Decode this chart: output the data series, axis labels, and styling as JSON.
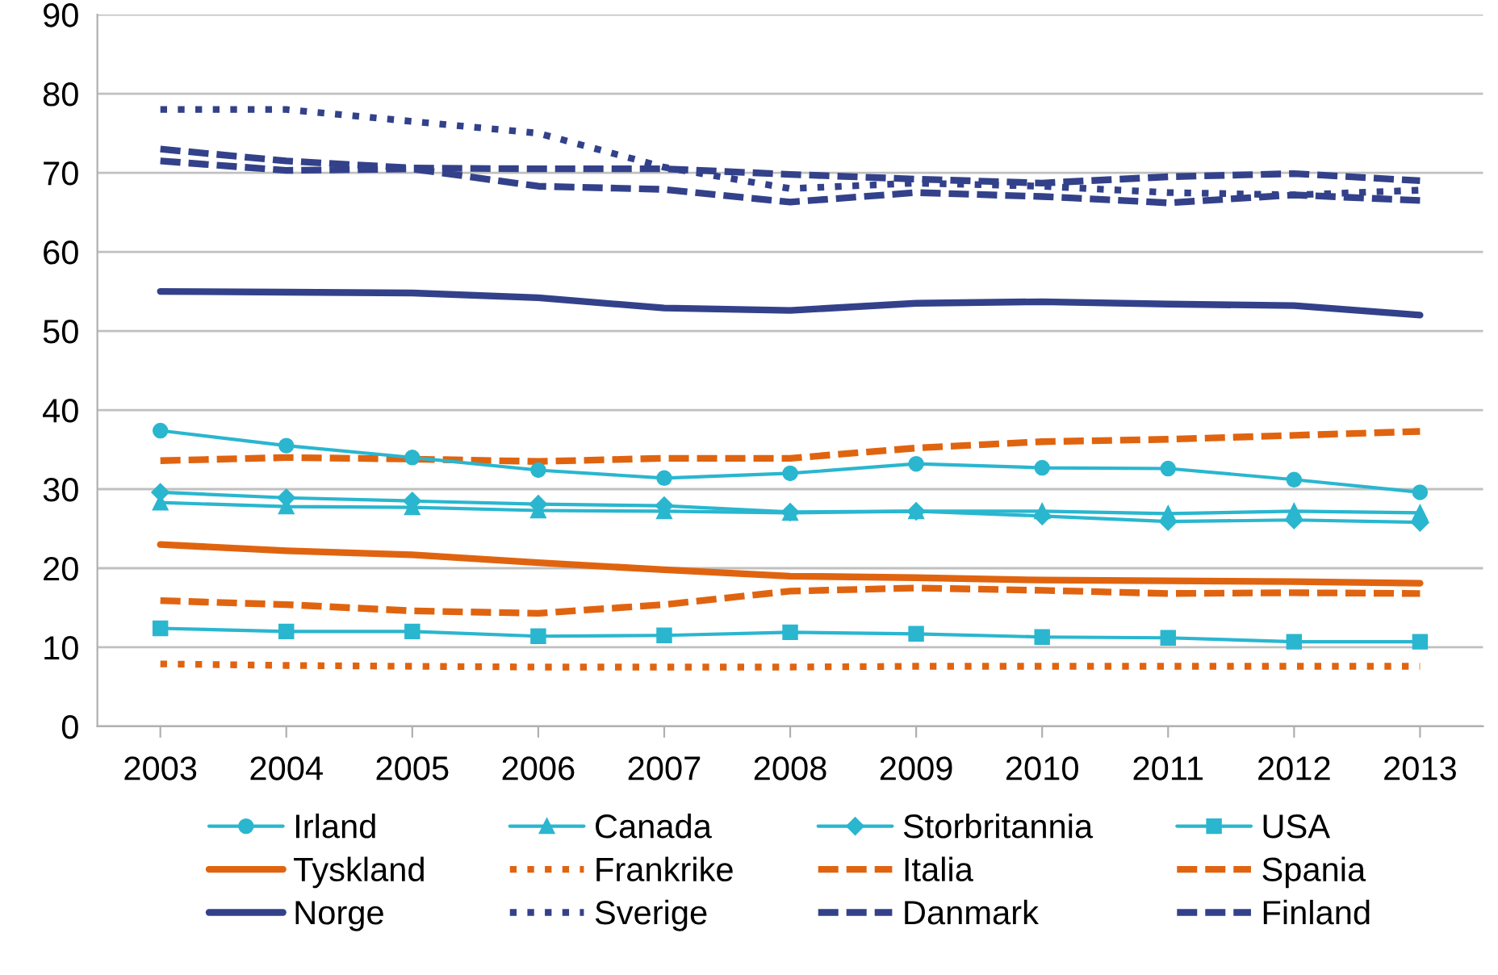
{
  "chart_data": {
    "type": "line",
    "categories": [
      "2003",
      "2004",
      "2005",
      "2006",
      "2007",
      "2008",
      "2009",
      "2010",
      "2011",
      "2012",
      "2013"
    ],
    "ylim": [
      0,
      90
    ],
    "yticks": [
      0,
      10,
      20,
      30,
      40,
      50,
      60,
      70,
      80,
      90
    ],
    "grid": "y",
    "legend": "bottom",
    "series": [
      {
        "name": "Irland",
        "color": "#2ab6cf",
        "marker": "circle",
        "line_style": "solid",
        "values": [
          37.4,
          35.5,
          34,
          32.4,
          31.4,
          32,
          33.2,
          32.7,
          32.6,
          31.2,
          29.6
        ]
      },
      {
        "name": "Canada",
        "color": "#2ab6cf",
        "marker": "triangle",
        "line_style": "solid",
        "values": [
          28.3,
          27.8,
          27.7,
          27.3,
          27.2,
          27,
          27.2,
          27.2,
          26.9,
          27.2,
          27.0
        ]
      },
      {
        "name": "Storbritannia",
        "color": "#2ab6cf",
        "marker": "diamond",
        "line_style": "solid",
        "values": [
          29.6,
          28.9,
          28.5,
          28.1,
          27.9,
          27.1,
          27.2,
          26.6,
          25.9,
          26.1,
          25.8
        ]
      },
      {
        "name": "USA",
        "color": "#2ab6cf",
        "marker": "square",
        "line_style": "solid",
        "values": [
          12.4,
          12,
          12,
          11.4,
          11.5,
          11.9,
          11.7,
          11.3,
          11.2,
          10.7,
          10.7
        ]
      },
      {
        "name": "Tyskland",
        "color": "#e06410",
        "marker": "none",
        "line_style": "solid",
        "values": [
          23,
          22.2,
          21.7,
          20.7,
          19.8,
          19,
          18.8,
          18.5,
          18.4,
          18.3,
          18.1
        ]
      },
      {
        "name": "Frankrike",
        "color": "#e06410",
        "marker": "none",
        "line_style": "dotted",
        "values": [
          7.9,
          7.7,
          7.6,
          7.5,
          7.5,
          7.5,
          7.6,
          7.6,
          7.6,
          7.6,
          7.6
        ]
      },
      {
        "name": "Italia",
        "color": "#e06410",
        "marker": "none",
        "line_style": "dashed",
        "values": [
          33.6,
          34,
          33.8,
          33.5,
          33.9,
          33.9,
          35.2,
          36,
          36.3,
          36.8,
          37.3
        ]
      },
      {
        "name": "Spania",
        "color": "#e06410",
        "marker": "none",
        "line_style": "dashed",
        "values": [
          15.9,
          15.4,
          14.6,
          14.3,
          15.4,
          17.1,
          17.5,
          17.2,
          16.8,
          16.9,
          16.8
        ]
      },
      {
        "name": "Norge",
        "color": "#33418a",
        "marker": "none",
        "line_style": "solid",
        "values": [
          55,
          54.9,
          54.8,
          54.2,
          52.9,
          52.6,
          53.5,
          53.7,
          53.4,
          53.2,
          52
        ]
      },
      {
        "name": "Sverige",
        "color": "#33418a",
        "marker": "none",
        "line_style": "dotted",
        "values": [
          78,
          78,
          76.5,
          75,
          70.7,
          68,
          68.7,
          68.3,
          67.5,
          67.2,
          67.8
        ]
      },
      {
        "name": "Danmark",
        "color": "#33418a",
        "marker": "none",
        "line_style": "dashed",
        "values": [
          71.5,
          70.3,
          70.5,
          68.3,
          67.9,
          66.3,
          67.5,
          67,
          66.2,
          67.2,
          66.5
        ]
      },
      {
        "name": "Finland",
        "color": "#33418a",
        "marker": "none",
        "line_style": "dashed",
        "values": [
          73,
          71.5,
          70.6,
          70.5,
          70.5,
          69.8,
          69.2,
          68.7,
          69.5,
          69.9,
          69
        ]
      }
    ]
  }
}
